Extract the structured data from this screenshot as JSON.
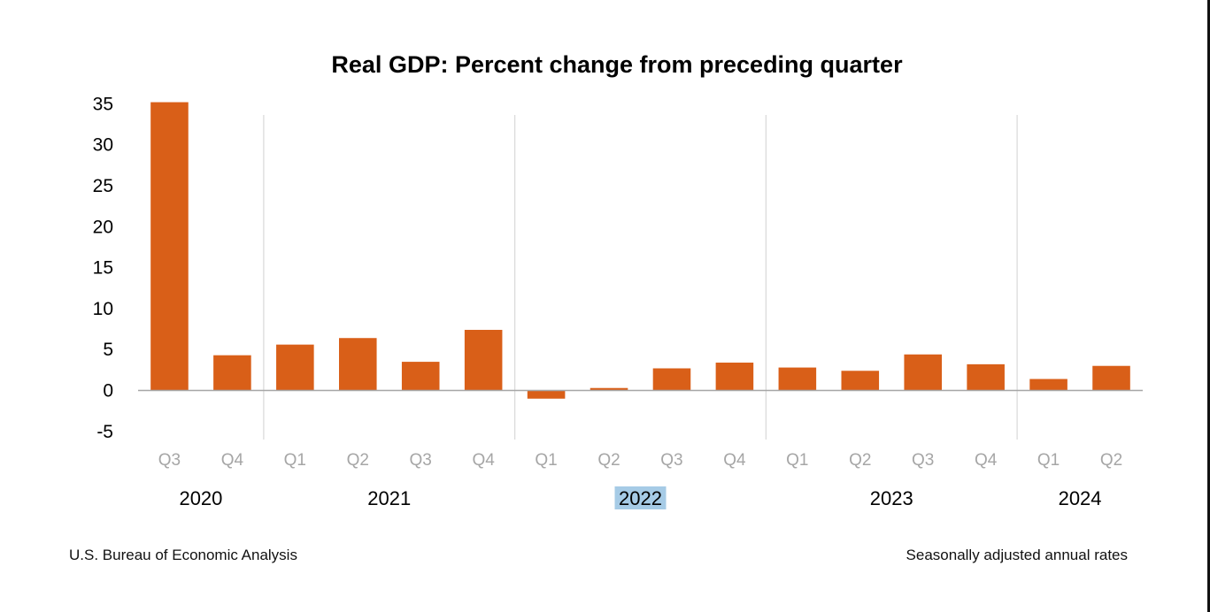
{
  "chart_data": {
    "type": "bar",
    "title": "Real GDP: Percent change from preceding quarter",
    "xlabel": "",
    "ylabel": "",
    "ylim": [
      -5,
      35
    ],
    "yticks": [
      35,
      30,
      25,
      20,
      15,
      10,
      5,
      0,
      -5
    ],
    "grid": false,
    "legend": "none",
    "categories": [
      {
        "quarter": "Q3",
        "year": "2020"
      },
      {
        "quarter": "Q4",
        "year": "2020"
      },
      {
        "quarter": "Q1",
        "year": "2021"
      },
      {
        "quarter": "Q2",
        "year": "2021"
      },
      {
        "quarter": "Q3",
        "year": "2021"
      },
      {
        "quarter": "Q4",
        "year": "2021"
      },
      {
        "quarter": "Q1",
        "year": "2022"
      },
      {
        "quarter": "Q2",
        "year": "2022"
      },
      {
        "quarter": "Q3",
        "year": "2022"
      },
      {
        "quarter": "Q4",
        "year": "2022"
      },
      {
        "quarter": "Q1",
        "year": "2023"
      },
      {
        "quarter": "Q2",
        "year": "2023"
      },
      {
        "quarter": "Q3",
        "year": "2023"
      },
      {
        "quarter": "Q4",
        "year": "2023"
      },
      {
        "quarter": "Q1",
        "year": "2024"
      },
      {
        "quarter": "Q2",
        "year": "2024"
      }
    ],
    "series": [
      {
        "name": "Real GDP percent change",
        "color": "#d95f18",
        "values": [
          35.2,
          4.3,
          5.6,
          6.4,
          3.5,
          7.4,
          -1.0,
          0.3,
          2.7,
          3.4,
          2.8,
          2.4,
          4.4,
          3.2,
          1.4,
          3.0
        ]
      }
    ],
    "year_groups": [
      {
        "label": "2020",
        "start": 0,
        "end": 1,
        "highlighted": false
      },
      {
        "label": "2021",
        "start": 2,
        "end": 5,
        "highlighted": false
      },
      {
        "label": "2022",
        "start": 6,
        "end": 9,
        "highlighted": true
      },
      {
        "label": "2023",
        "start": 10,
        "end": 13,
        "highlighted": false
      },
      {
        "label": "2024",
        "start": 14,
        "end": 15,
        "highlighted": false
      }
    ],
    "source_note": "U.S. Bureau of Economic Analysis",
    "rate_note": "Seasonally adjusted annual rates"
  },
  "colors": {
    "bar": "#d95f18",
    "axis": "#a6a6a6",
    "separator": "#d9d9d9",
    "quarter_label": "#a6a6a6",
    "selection_highlight": "#a6cbe6"
  }
}
